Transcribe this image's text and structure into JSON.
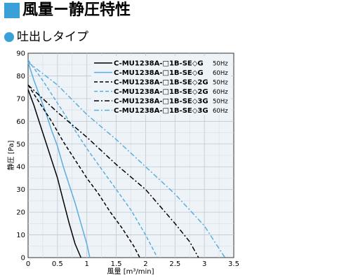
{
  "header": {
    "title": "風量ー静圧特性",
    "subtitle": "吐出しタイプ",
    "accent_color": "#39a0d8"
  },
  "chart_data": {
    "type": "line",
    "title": "",
    "xlabel": "風量 [m³/min]",
    "ylabel": "静圧 [Pa]",
    "xlim": [
      0,
      3.5
    ],
    "ylim": [
      0,
      90
    ],
    "xticks": [
      "0",
      "0.5",
      "1",
      "1.5",
      "2",
      "2.5",
      "3",
      "3.5"
    ],
    "yticks": [
      "0",
      "10",
      "20",
      "30",
      "40",
      "50",
      "60",
      "70",
      "80",
      "90"
    ],
    "grid": true,
    "legend_position": "top-right",
    "series": [
      {
        "name": "C-MU1238A-□1B-SE◇G",
        "freq": "50Hz",
        "color": "#000000",
        "dash": "solid",
        "x": [
          0,
          0.1,
          0.2,
          0.3,
          0.4,
          0.5,
          0.6,
          0.7,
          0.8,
          0.9
        ],
        "y": [
          74,
          67,
          59,
          51,
          43,
          35,
          25,
          15,
          6,
          0
        ]
      },
      {
        "name": "C-MU1238A-□1B-SE◇G",
        "freq": "60Hz",
        "color": "#5aaede",
        "dash": "solid",
        "x": [
          0,
          0.1,
          0.2,
          0.3,
          0.4,
          0.5,
          0.6,
          0.7,
          0.8,
          0.9,
          1.0,
          1.05
        ],
        "y": [
          86,
          78,
          71,
          64,
          56,
          49,
          40,
          32,
          24,
          15,
          6,
          0
        ]
      },
      {
        "name": "C-MU1238A-□1B-SE◇2G",
        "freq": "50Hz",
        "color": "#000000",
        "dash": "dash",
        "x": [
          0,
          0.2,
          0.4,
          0.6,
          0.8,
          1.0,
          1.2,
          1.4,
          1.6,
          1.8,
          1.9
        ],
        "y": [
          76,
          68,
          60,
          51,
          43,
          35,
          28,
          20,
          13,
          5,
          0
        ]
      },
      {
        "name": "C-MU1238A-□1B-SE◇2G",
        "freq": "60Hz",
        "color": "#5aaede",
        "dash": "dash",
        "x": [
          0,
          0.25,
          0.5,
          0.75,
          1.0,
          1.25,
          1.5,
          1.75,
          2.0,
          2.2
        ],
        "y": [
          87,
          78,
          68,
          58,
          48,
          39,
          30,
          21,
          10,
          0
        ]
      },
      {
        "name": "C-MU1238A-□1B-SE◇3G",
        "freq": "50Hz",
        "color": "#000000",
        "dash": "dashdot",
        "x": [
          0,
          0.5,
          1.0,
          1.5,
          2.0,
          2.5,
          2.75,
          2.9
        ],
        "y": [
          76,
          64,
          53,
          41,
          30,
          15,
          7,
          0
        ]
      },
      {
        "name": "C-MU1238A-□1B-SE◇3G",
        "freq": "60Hz",
        "color": "#5aaede",
        "dash": "dashdot",
        "x": [
          0,
          0.5,
          1.0,
          1.5,
          2.0,
          2.5,
          3.0,
          3.35
        ],
        "y": [
          86,
          76,
          63,
          52,
          40,
          28,
          14,
          0
        ]
      }
    ]
  }
}
